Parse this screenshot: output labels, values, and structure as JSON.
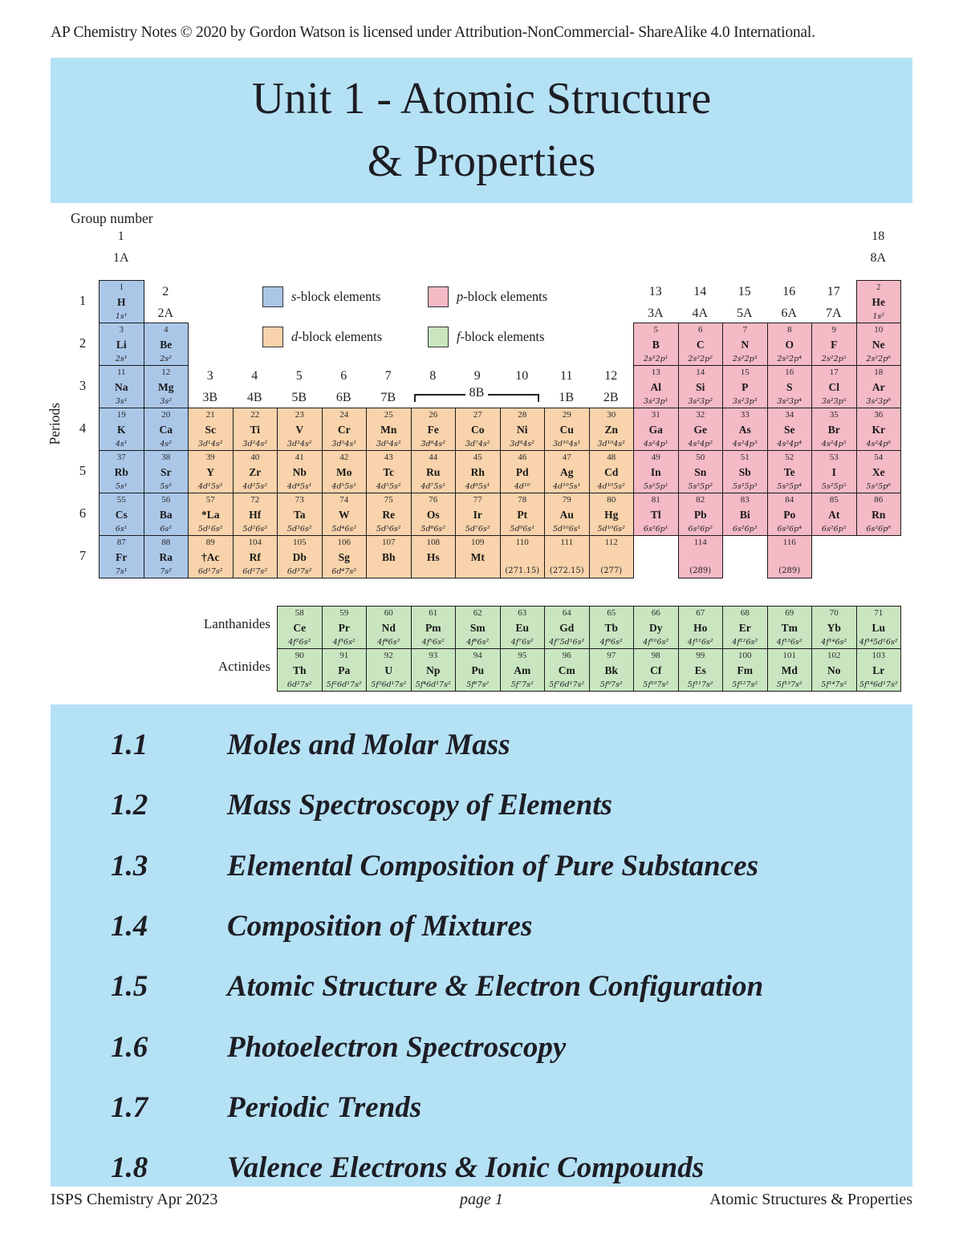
{
  "header": {
    "copyright": "AP Chemistry Notes © 2020 by Gordon Watson is licensed under Attribution-NonCommercial- ShareAlike 4.0 International."
  },
  "title": {
    "line1": "Unit 1 - Atomic Structure",
    "line2": "& Properties"
  },
  "colors": {
    "band_blue": "#b5e1f5",
    "s_block": "#abc7e8",
    "p_block": "#f4bac6",
    "d_block": "#f8d3ab",
    "f_block": "#c9e6c0"
  },
  "periodic_table": {
    "group_number_label": "Group number",
    "periods_label": "Periods",
    "period_numbers": [
      "1",
      "2",
      "3",
      "4",
      "5",
      "6",
      "7"
    ],
    "bracket_label": "8B",
    "legend": [
      {
        "letter": "s",
        "rest": "-block elements",
        "block": "s"
      },
      {
        "letter": "p",
        "rest": "-block elements",
        "block": "p"
      },
      {
        "letter": "d",
        "rest": "-block elements",
        "block": "d"
      },
      {
        "letter": "f",
        "rest": "-block elements",
        "block": "f"
      }
    ],
    "group_headers": [
      {
        "col": 1,
        "line1": "1",
        "line2": "1A",
        "level": "top"
      },
      {
        "col": 18,
        "line1": "18",
        "line2": "8A",
        "level": "top"
      },
      {
        "col": 2,
        "line1": "2",
        "line2": "2A",
        "level": "p1"
      },
      {
        "col": 13,
        "line1": "13",
        "line2": "3A",
        "level": "p1"
      },
      {
        "col": 14,
        "line1": "14",
        "line2": "4A",
        "level": "p1"
      },
      {
        "col": 15,
        "line1": "15",
        "line2": "5A",
        "level": "p1"
      },
      {
        "col": 16,
        "line1": "16",
        "line2": "6A",
        "level": "p1"
      },
      {
        "col": 17,
        "line1": "17",
        "line2": "7A",
        "level": "p1"
      },
      {
        "col": 3,
        "line1": "3",
        "line2": "3B",
        "level": "p3"
      },
      {
        "col": 4,
        "line1": "4",
        "line2": "4B",
        "level": "p3"
      },
      {
        "col": 5,
        "line1": "5",
        "line2": "5B",
        "level": "p3"
      },
      {
        "col": 6,
        "line1": "6",
        "line2": "6B",
        "level": "p3"
      },
      {
        "col": 7,
        "line1": "7",
        "line2": "7B",
        "level": "p3"
      },
      {
        "col": 8,
        "line1": "8",
        "line2": "",
        "level": "p3"
      },
      {
        "col": 9,
        "line1": "9",
        "line2": "",
        "level": "p3"
      },
      {
        "col": 10,
        "line1": "10",
        "line2": "",
        "level": "p3"
      },
      {
        "col": 11,
        "line1": "11",
        "line2": "1B",
        "level": "p3"
      },
      {
        "col": 12,
        "line1": "12",
        "line2": "2B",
        "level": "p3"
      }
    ],
    "elements": [
      {
        "num": "1",
        "sym": "H",
        "cfg": "1s¹",
        "block": "s",
        "period": 1,
        "col": 1
      },
      {
        "num": "2",
        "sym": "He",
        "cfg": "1s²",
        "block": "p",
        "period": 1,
        "col": 18
      },
      {
        "num": "3",
        "sym": "Li",
        "cfg": "2s¹",
        "block": "s",
        "period": 2,
        "col": 1
      },
      {
        "num": "4",
        "sym": "Be",
        "cfg": "2s²",
        "block": "s",
        "period": 2,
        "col": 2
      },
      {
        "num": "5",
        "sym": "B",
        "cfg": "2s²2p¹",
        "block": "p",
        "period": 2,
        "col": 13
      },
      {
        "num": "6",
        "sym": "C",
        "cfg": "2s²2p²",
        "block": "p",
        "period": 2,
        "col": 14
      },
      {
        "num": "7",
        "sym": "N",
        "cfg": "2s²2p³",
        "block": "p",
        "period": 2,
        "col": 15
      },
      {
        "num": "8",
        "sym": "O",
        "cfg": "2s²2p⁴",
        "block": "p",
        "period": 2,
        "col": 16
      },
      {
        "num": "9",
        "sym": "F",
        "cfg": "2s²2p⁵",
        "block": "p",
        "period": 2,
        "col": 17
      },
      {
        "num": "10",
        "sym": "Ne",
        "cfg": "2s²2p⁶",
        "block": "p",
        "period": 2,
        "col": 18
      },
      {
        "num": "11",
        "sym": "Na",
        "cfg": "3s¹",
        "block": "s",
        "period": 3,
        "col": 1
      },
      {
        "num": "12",
        "sym": "Mg",
        "cfg": "3s²",
        "block": "s",
        "period": 3,
        "col": 2
      },
      {
        "num": "13",
        "sym": "Al",
        "cfg": "3s²3p¹",
        "block": "p",
        "period": 3,
        "col": 13
      },
      {
        "num": "14",
        "sym": "Si",
        "cfg": "3s²3p²",
        "block": "p",
        "period": 3,
        "col": 14
      },
      {
        "num": "15",
        "sym": "P",
        "cfg": "3s²3p³",
        "block": "p",
        "period": 3,
        "col": 15
      },
      {
        "num": "16",
        "sym": "S",
        "cfg": "3s²3p⁴",
        "block": "p",
        "period": 3,
        "col": 16
      },
      {
        "num": "17",
        "sym": "Cl",
        "cfg": "3s²3p⁵",
        "block": "p",
        "period": 3,
        "col": 17
      },
      {
        "num": "18",
        "sym": "Ar",
        "cfg": "3s²3p⁶",
        "block": "p",
        "period": 3,
        "col": 18
      },
      {
        "num": "19",
        "sym": "K",
        "cfg": "4s¹",
        "block": "s",
        "period": 4,
        "col": 1
      },
      {
        "num": "20",
        "sym": "Ca",
        "cfg": "4s²",
        "block": "s",
        "period": 4,
        "col": 2
      },
      {
        "num": "21",
        "sym": "Sc",
        "cfg": "3d¹4s²",
        "block": "d",
        "period": 4,
        "col": 3
      },
      {
        "num": "22",
        "sym": "Ti",
        "cfg": "3d²4s²",
        "block": "d",
        "period": 4,
        "col": 4
      },
      {
        "num": "23",
        "sym": "V",
        "cfg": "3d³4s²",
        "block": "d",
        "period": 4,
        "col": 5
      },
      {
        "num": "24",
        "sym": "Cr",
        "cfg": "3d⁵4s¹",
        "block": "d",
        "period": 4,
        "col": 6
      },
      {
        "num": "25",
        "sym": "Mn",
        "cfg": "3d⁵4s²",
        "block": "d",
        "period": 4,
        "col": 7
      },
      {
        "num": "26",
        "sym": "Fe",
        "cfg": "3d⁶4s²",
        "block": "d",
        "period": 4,
        "col": 8
      },
      {
        "num": "27",
        "sym": "Co",
        "cfg": "3d⁷4s²",
        "block": "d",
        "period": 4,
        "col": 9
      },
      {
        "num": "28",
        "sym": "Ni",
        "cfg": "3d⁸4s²",
        "block": "d",
        "period": 4,
        "col": 10
      },
      {
        "num": "29",
        "sym": "Cu",
        "cfg": "3d¹⁰4s¹",
        "block": "d",
        "period": 4,
        "col": 11
      },
      {
        "num": "30",
        "sym": "Zn",
        "cfg": "3d¹⁰4s²",
        "block": "d",
        "period": 4,
        "col": 12
      },
      {
        "num": "31",
        "sym": "Ga",
        "cfg": "4s²4p¹",
        "block": "p",
        "period": 4,
        "col": 13
      },
      {
        "num": "32",
        "sym": "Ge",
        "cfg": "4s²4p²",
        "block": "p",
        "period": 4,
        "col": 14
      },
      {
        "num": "33",
        "sym": "As",
        "cfg": "4s²4p³",
        "block": "p",
        "period": 4,
        "col": 15
      },
      {
        "num": "34",
        "sym": "Se",
        "cfg": "4s²4p⁴",
        "block": "p",
        "period": 4,
        "col": 16
      },
      {
        "num": "35",
        "sym": "Br",
        "cfg": "4s²4p⁵",
        "block": "p",
        "period": 4,
        "col": 17
      },
      {
        "num": "36",
        "sym": "Kr",
        "cfg": "4s²4p⁶",
        "block": "p",
        "period": 4,
        "col": 18
      },
      {
        "num": "37",
        "sym": "Rb",
        "cfg": "5s¹",
        "block": "s",
        "period": 5,
        "col": 1
      },
      {
        "num": "38",
        "sym": "Sr",
        "cfg": "5s²",
        "block": "s",
        "period": 5,
        "col": 2
      },
      {
        "num": "39",
        "sym": "Y",
        "cfg": "4d¹5s²",
        "block": "d",
        "period": 5,
        "col": 3
      },
      {
        "num": "40",
        "sym": "Zr",
        "cfg": "4d²5s²",
        "block": "d",
        "period": 5,
        "col": 4
      },
      {
        "num": "41",
        "sym": "Nb",
        "cfg": "4d⁴5s¹",
        "block": "d",
        "period": 5,
        "col": 5
      },
      {
        "num": "42",
        "sym": "Mo",
        "cfg": "4d⁵5s¹",
        "block": "d",
        "period": 5,
        "col": 6
      },
      {
        "num": "43",
        "sym": "Tc",
        "cfg": "4d⁵5s²",
        "block": "d",
        "period": 5,
        "col": 7
      },
      {
        "num": "44",
        "sym": "Ru",
        "cfg": "4d⁷5s¹",
        "block": "d",
        "period": 5,
        "col": 8
      },
      {
        "num": "45",
        "sym": "Rh",
        "cfg": "4d⁸5s¹",
        "block": "d",
        "period": 5,
        "col": 9
      },
      {
        "num": "46",
        "sym": "Pd",
        "cfg": "4d¹⁰",
        "block": "d",
        "period": 5,
        "col": 10
      },
      {
        "num": "47",
        "sym": "Ag",
        "cfg": "4d¹⁰5s¹",
        "block": "d",
        "period": 5,
        "col": 11
      },
      {
        "num": "48",
        "sym": "Cd",
        "cfg": "4d¹⁰5s²",
        "block": "d",
        "period": 5,
        "col": 12
      },
      {
        "num": "49",
        "sym": "In",
        "cfg": "5s²5p¹",
        "block": "p",
        "period": 5,
        "col": 13
      },
      {
        "num": "50",
        "sym": "Sn",
        "cfg": "5s²5p²",
        "block": "p",
        "period": 5,
        "col": 14
      },
      {
        "num": "51",
        "sym": "Sb",
        "cfg": "5s²5p³",
        "block": "p",
        "period": 5,
        "col": 15
      },
      {
        "num": "52",
        "sym": "Te",
        "cfg": "5s²5p⁴",
        "block": "p",
        "period": 5,
        "col": 16
      },
      {
        "num": "53",
        "sym": "I",
        "cfg": "5s²5p⁵",
        "block": "p",
        "period": 5,
        "col": 17
      },
      {
        "num": "54",
        "sym": "Xe",
        "cfg": "5s²5p⁶",
        "block": "p",
        "period": 5,
        "col": 18
      },
      {
        "num": "55",
        "sym": "Cs",
        "cfg": "6s¹",
        "block": "s",
        "period": 6,
        "col": 1
      },
      {
        "num": "56",
        "sym": "Ba",
        "cfg": "6s²",
        "block": "s",
        "period": 6,
        "col": 2
      },
      {
        "num": "57",
        "sym": "*La",
        "cfg": "5d¹6s²",
        "block": "d",
        "period": 6,
        "col": 3
      },
      {
        "num": "72",
        "sym": "Hf",
        "cfg": "5d²6s²",
        "block": "d",
        "period": 6,
        "col": 4
      },
      {
        "num": "73",
        "sym": "Ta",
        "cfg": "5d³6s²",
        "block": "d",
        "period": 6,
        "col": 5
      },
      {
        "num": "74",
        "sym": "W",
        "cfg": "5d⁴6s²",
        "block": "d",
        "period": 6,
        "col": 6
      },
      {
        "num": "75",
        "sym": "Re",
        "cfg": "5d⁵6s²",
        "block": "d",
        "period": 6,
        "col": 7
      },
      {
        "num": "76",
        "sym": "Os",
        "cfg": "5d⁶6s²",
        "block": "d",
        "period": 6,
        "col": 8
      },
      {
        "num": "77",
        "sym": "Ir",
        "cfg": "5d⁷6s²",
        "block": "d",
        "period": 6,
        "col": 9
      },
      {
        "num": "78",
        "sym": "Pt",
        "cfg": "5d⁹6s¹",
        "block": "d",
        "period": 6,
        "col": 10
      },
      {
        "num": "79",
        "sym": "Au",
        "cfg": "5d¹⁰6s¹",
        "block": "d",
        "period": 6,
        "col": 11
      },
      {
        "num": "80",
        "sym": "Hg",
        "cfg": "5d¹⁰6s²",
        "block": "d",
        "period": 6,
        "col": 12
      },
      {
        "num": "81",
        "sym": "Tl",
        "cfg": "6s²6p¹",
        "block": "p",
        "period": 6,
        "col": 13
      },
      {
        "num": "82",
        "sym": "Pb",
        "cfg": "6s²6p²",
        "block": "p",
        "period": 6,
        "col": 14
      },
      {
        "num": "83",
        "sym": "Bi",
        "cfg": "6s²6p³",
        "block": "p",
        "period": 6,
        "col": 15
      },
      {
        "num": "84",
        "sym": "Po",
        "cfg": "6s²6p⁴",
        "block": "p",
        "period": 6,
        "col": 16
      },
      {
        "num": "85",
        "sym": "At",
        "cfg": "6s²6p⁵",
        "block": "p",
        "period": 6,
        "col": 17
      },
      {
        "num": "86",
        "sym": "Rn",
        "cfg": "6s²6p⁶",
        "block": "p",
        "period": 6,
        "col": 18
      },
      {
        "num": "87",
        "sym": "Fr",
        "cfg": "7s¹",
        "block": "s",
        "period": 7,
        "col": 1
      },
      {
        "num": "88",
        "sym": "Ra",
        "cfg": "7s²",
        "block": "s",
        "period": 7,
        "col": 2
      },
      {
        "num": "89",
        "sym": "†Ac",
        "cfg": "6d¹7s²",
        "block": "d",
        "period": 7,
        "col": 3
      },
      {
        "num": "104",
        "sym": "Rf",
        "cfg": "6d²7s²",
        "block": "d",
        "period": 7,
        "col": 4
      },
      {
        "num": "105",
        "sym": "Db",
        "cfg": "6d³7s²",
        "block": "d",
        "period": 7,
        "col": 5
      },
      {
        "num": "106",
        "sym": "Sg",
        "cfg": "6d⁴7s²",
        "block": "d",
        "period": 7,
        "col": 6
      },
      {
        "num": "107",
        "sym": "Bh",
        "cfg": "",
        "block": "d",
        "period": 7,
        "col": 7
      },
      {
        "num": "108",
        "sym": "Hs",
        "cfg": "",
        "block": "d",
        "period": 7,
        "col": 8
      },
      {
        "num": "109",
        "sym": "Mt",
        "cfg": "",
        "block": "d",
        "period": 7,
        "col": 9
      },
      {
        "num": "110",
        "sym": "",
        "mass": "(271.15)",
        "block": "d",
        "period": 7,
        "col": 10
      },
      {
        "num": "111",
        "sym": "",
        "mass": "(272.15)",
        "block": "d",
        "period": 7,
        "col": 11
      },
      {
        "num": "112",
        "sym": "",
        "mass": "(277)",
        "block": "d",
        "period": 7,
        "col": 12
      },
      {
        "num": "114",
        "sym": "",
        "mass": "(289)",
        "block": "p",
        "period": 7,
        "col": 14
      },
      {
        "num": "116",
        "sym": "",
        "mass": "(289)",
        "block": "p",
        "period": 7,
        "col": 16
      }
    ],
    "lanthanides_label": "Lanthanides",
    "actinides_label": "Actinides",
    "lanthanides": [
      {
        "num": "58",
        "sym": "Ce",
        "cfg": "4f²6s²"
      },
      {
        "num": "59",
        "sym": "Pr",
        "cfg": "4f³6s²"
      },
      {
        "num": "60",
        "sym": "Nd",
        "cfg": "4f⁴6s²"
      },
      {
        "num": "61",
        "sym": "Pm",
        "cfg": "4f⁵6s²"
      },
      {
        "num": "62",
        "sym": "Sm",
        "cfg": "4f⁶6s²"
      },
      {
        "num": "63",
        "sym": "Eu",
        "cfg": "4f⁷6s²"
      },
      {
        "num": "64",
        "sym": "Gd",
        "cfg": "4f⁷5d¹6s²"
      },
      {
        "num": "65",
        "sym": "Tb",
        "cfg": "4f⁹6s²"
      },
      {
        "num": "66",
        "sym": "Dy",
        "cfg": "4f¹⁰6s²"
      },
      {
        "num": "67",
        "sym": "Ho",
        "cfg": "4f¹¹6s²"
      },
      {
        "num": "68",
        "sym": "Er",
        "cfg": "4f¹²6s²"
      },
      {
        "num": "69",
        "sym": "Tm",
        "cfg": "4f¹³6s²"
      },
      {
        "num": "70",
        "sym": "Yb",
        "cfg": "4f¹⁴6s²"
      },
      {
        "num": "71",
        "sym": "Lu",
        "cfg": "4f¹⁴5d¹6s²"
      }
    ],
    "actinides": [
      {
        "num": "90",
        "sym": "Th",
        "cfg": "6d²7s²"
      },
      {
        "num": "91",
        "sym": "Pa",
        "cfg": "5f²6d¹7s²"
      },
      {
        "num": "92",
        "sym": "U",
        "cfg": "5f³6d¹7s²"
      },
      {
        "num": "93",
        "sym": "Np",
        "cfg": "5f⁴6d¹7s²"
      },
      {
        "num": "94",
        "sym": "Pu",
        "cfg": "5f⁶7s²"
      },
      {
        "num": "95",
        "sym": "Am",
        "cfg": "5f⁷7s²"
      },
      {
        "num": "96",
        "sym": "Cm",
        "cfg": "5f⁷6d¹7s²"
      },
      {
        "num": "97",
        "sym": "Bk",
        "cfg": "5f⁹7s²"
      },
      {
        "num": "98",
        "sym": "Cf",
        "cfg": "5f¹⁰7s²"
      },
      {
        "num": "99",
        "sym": "Es",
        "cfg": "5f¹¹7s²"
      },
      {
        "num": "100",
        "sym": "Fm",
        "cfg": "5f¹²7s²"
      },
      {
        "num": "101",
        "sym": "Md",
        "cfg": "5f¹³7s²"
      },
      {
        "num": "102",
        "sym": "No",
        "cfg": "5f¹⁴7s²"
      },
      {
        "num": "103",
        "sym": "Lr",
        "cfg": "5f¹⁴6d¹7s²"
      }
    ]
  },
  "topics": [
    {
      "num": "1.1",
      "title": "Moles and Molar Mass"
    },
    {
      "num": "1.2",
      "title": "Mass Spectroscopy of Elements"
    },
    {
      "num": "1.3",
      "title": "Elemental Composition of Pure Substances"
    },
    {
      "num": "1.4",
      "title": "Composition of Mixtures"
    },
    {
      "num": "1.5",
      "title": "Atomic Structure & Electron Configuration"
    },
    {
      "num": "1.6",
      "title": "Photoelectron Spectroscopy"
    },
    {
      "num": "1.7",
      "title": "Periodic Trends"
    },
    {
      "num": "1.8",
      "title": "Valence Electrons & Ionic Compounds"
    }
  ],
  "footer": {
    "left": "ISPS Chemistry Apr 2023",
    "center": "page 1",
    "right": "Atomic Structures & Properties"
  }
}
